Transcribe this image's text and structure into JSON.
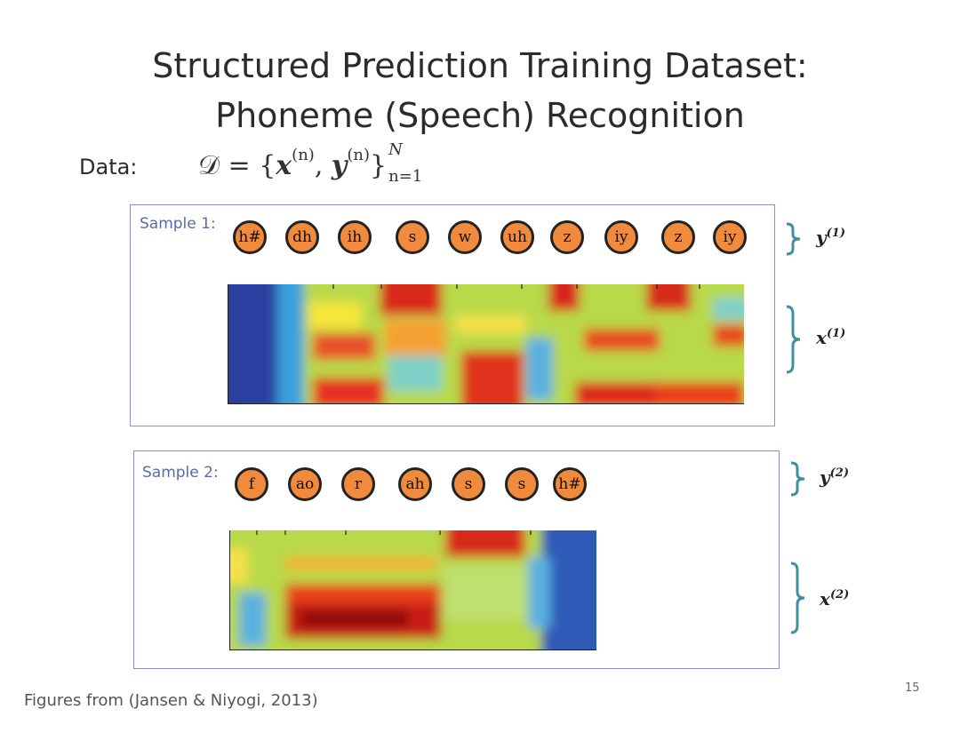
{
  "slide": {
    "title_line1": "Structured Prediction Training Dataset:",
    "title_line2": "Phoneme (Speech) Recognition",
    "data_label": "Data:",
    "formula": {
      "D": "𝒟",
      "eq": "=",
      "open": "{",
      "x": "x",
      "sup_n": "(n)",
      "comma": ",",
      "y": "y",
      "close": "}",
      "upper": "N",
      "lower": "n=1"
    },
    "footer": "Figures from (Jansen & Niyogi, 2013)",
    "page_number": "15"
  },
  "samples": [
    {
      "label": "Sample 1:",
      "phonemes": [
        "h#",
        "dh",
        "ih",
        "s",
        "w",
        "uh",
        "z",
        "iy",
        "z",
        "iy"
      ],
      "y_label": "y",
      "y_sup": "(1)",
      "x_label": "x",
      "x_sup": "(1)"
    },
    {
      "label": "Sample 2:",
      "phonemes": [
        "f",
        "ao",
        "r",
        "ah",
        "s",
        "s",
        "h#"
      ],
      "y_label": "y",
      "y_sup": "(2)",
      "x_label": "x",
      "x_sup": "(2)"
    }
  ],
  "colors": {
    "phoneme_fill": "#f08a3c",
    "box_border": "#8a93c5",
    "brace_color": "#3f8fa0"
  }
}
